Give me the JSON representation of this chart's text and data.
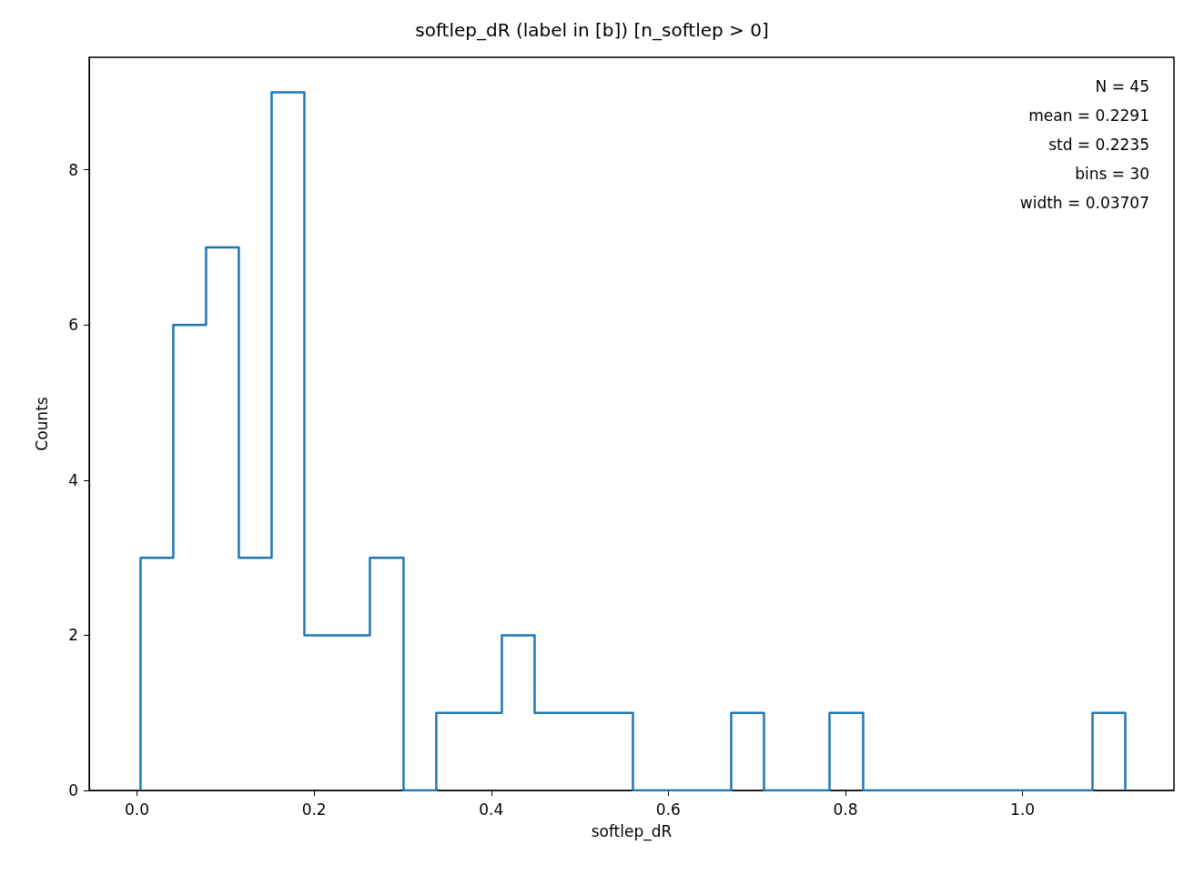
{
  "chart_data": {
    "type": "histogram",
    "title": "softlep_dR (label in [b]) [n_softlep > 0]",
    "xlabel": "softlep_dR",
    "ylabel": "Counts",
    "annotations": [
      "N = 45",
      "mean = 0.2291",
      "std = 0.2235",
      "bins = 30",
      "width = 0.03707"
    ],
    "bins": [
      0.004,
      0.041,
      0.078,
      0.115,
      0.152,
      0.189,
      0.226,
      0.263,
      0.301,
      0.338,
      0.375,
      0.412,
      0.449,
      0.486,
      0.523,
      0.56,
      0.597,
      0.634,
      0.671,
      0.708,
      0.745,
      0.782,
      0.82,
      0.857,
      0.894,
      0.931,
      0.968,
      1.005,
      1.042,
      1.079,
      1.116
    ],
    "values": [
      3,
      6,
      7,
      3,
      9,
      2,
      2,
      3,
      0,
      1,
      1,
      2,
      1,
      1,
      1,
      0,
      0,
      0,
      1,
      0,
      0,
      1,
      0,
      0,
      0,
      0,
      0,
      0,
      0,
      1
    ],
    "color": "#1f77b4",
    "xlim": [
      -0.054,
      1.171
    ],
    "ylim": [
      0,
      9.45
    ],
    "xticks": [
      {
        "value": 0,
        "label": "0.0"
      },
      {
        "value": 0.2,
        "label": "0.2"
      },
      {
        "value": 0.4,
        "label": "0.4"
      },
      {
        "value": 0.6,
        "label": "0.6"
      },
      {
        "value": 0.8,
        "label": "0.8"
      },
      {
        "value": 1,
        "label": "1.0"
      }
    ],
    "yticks": [
      0,
      2,
      4,
      6,
      8
    ],
    "grid": false
  }
}
